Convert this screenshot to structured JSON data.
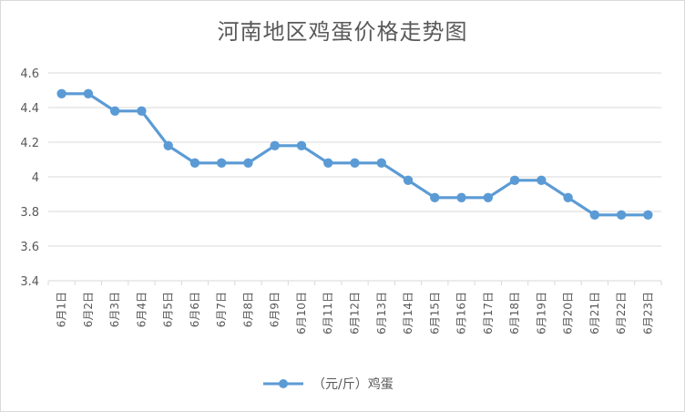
{
  "chart_data": {
    "type": "line",
    "title": "河南地区鸡蛋价格走势图",
    "categories": [
      "6月1日",
      "6月2日",
      "6月3日",
      "6月4日",
      "6月5日",
      "6月6日",
      "6月7日",
      "6月8日",
      "6月9日",
      "6月10日",
      "6月11日",
      "6月12日",
      "6月13日",
      "6月14日",
      "6月15日",
      "6月16日",
      "6月17日",
      "6月18日",
      "6月19日",
      "6月20日",
      "6月21日",
      "6月22日",
      "6月23日"
    ],
    "series": [
      {
        "name": "（元/斤）鸡蛋",
        "values": [
          4.48,
          4.48,
          4.38,
          4.38,
          4.18,
          4.08,
          4.08,
          4.08,
          4.18,
          4.18,
          4.08,
          4.08,
          4.08,
          3.98,
          3.88,
          3.88,
          3.88,
          3.98,
          3.98,
          3.88,
          3.78,
          3.78,
          3.78
        ],
        "color": "#5b9bd5"
      }
    ],
    "yticks": [
      "3.4",
      "3.6",
      "3.8",
      "4",
      "4.2",
      "4.4",
      "4.6"
    ],
    "ylim": [
      3.4,
      4.6
    ],
    "grid": true,
    "legend": "bottom",
    "xlabel": "",
    "ylabel": ""
  },
  "colors": {
    "line": "#5b9bd5",
    "grid": "#d9d9d9",
    "text": "#595959"
  }
}
